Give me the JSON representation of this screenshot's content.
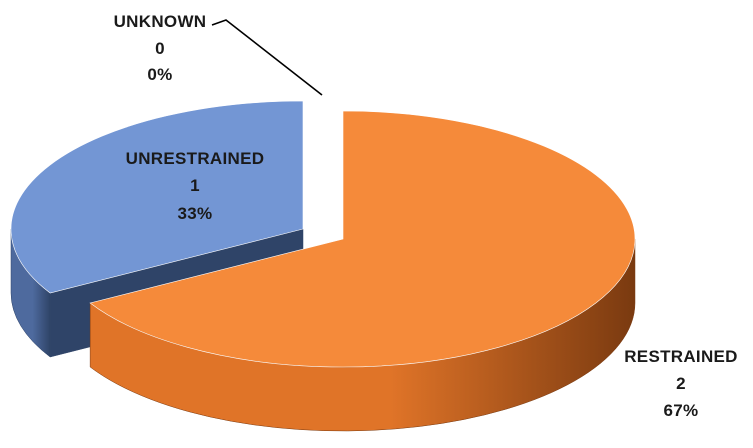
{
  "chart_data": {
    "type": "pie",
    "style": "3d-exploded",
    "slices": [
      {
        "name": "RESTRAINED",
        "count": "2",
        "percent": "67%",
        "value": 2,
        "color": "#F58A3A",
        "side_color_dark": "#7A3A10",
        "side_color_light": "#E07428"
      },
      {
        "name": "UNRESTRAINED",
        "count": "1",
        "percent": "33%",
        "value": 1,
        "color": "#7396D4",
        "side_color_dark": "#2F4468",
        "side_color_light": "#4E6A9E"
      },
      {
        "name": "UNKNOWN",
        "count": "0",
        "percent": "0%",
        "value": 0,
        "color": "#8FA0B0"
      }
    ]
  }
}
